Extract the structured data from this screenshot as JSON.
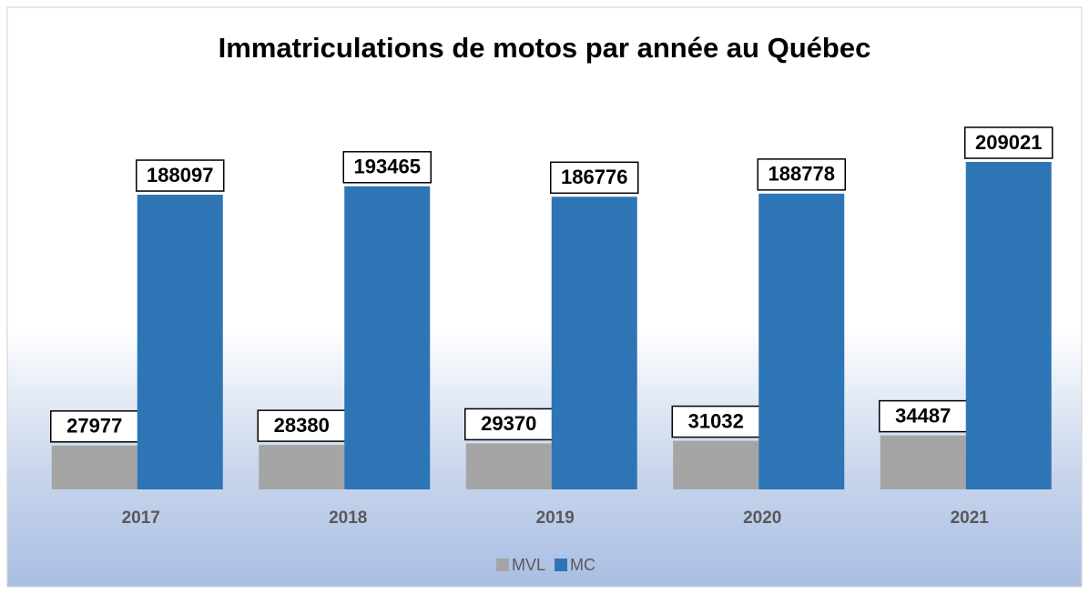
{
  "chart_data": {
    "type": "bar",
    "title": "Immatriculations de motos par année au Québec",
    "categories": [
      "2017",
      "2018",
      "2019",
      "2020",
      "2021"
    ],
    "series": [
      {
        "name": "MVL",
        "color": "#a5a5a5",
        "values": [
          27977,
          28380,
          29370,
          31032,
          34487
        ]
      },
      {
        "name": "MC",
        "color": "#2e75b6",
        "values": [
          188097,
          193465,
          186776,
          188778,
          209021
        ]
      }
    ],
    "legend": "bottom"
  }
}
